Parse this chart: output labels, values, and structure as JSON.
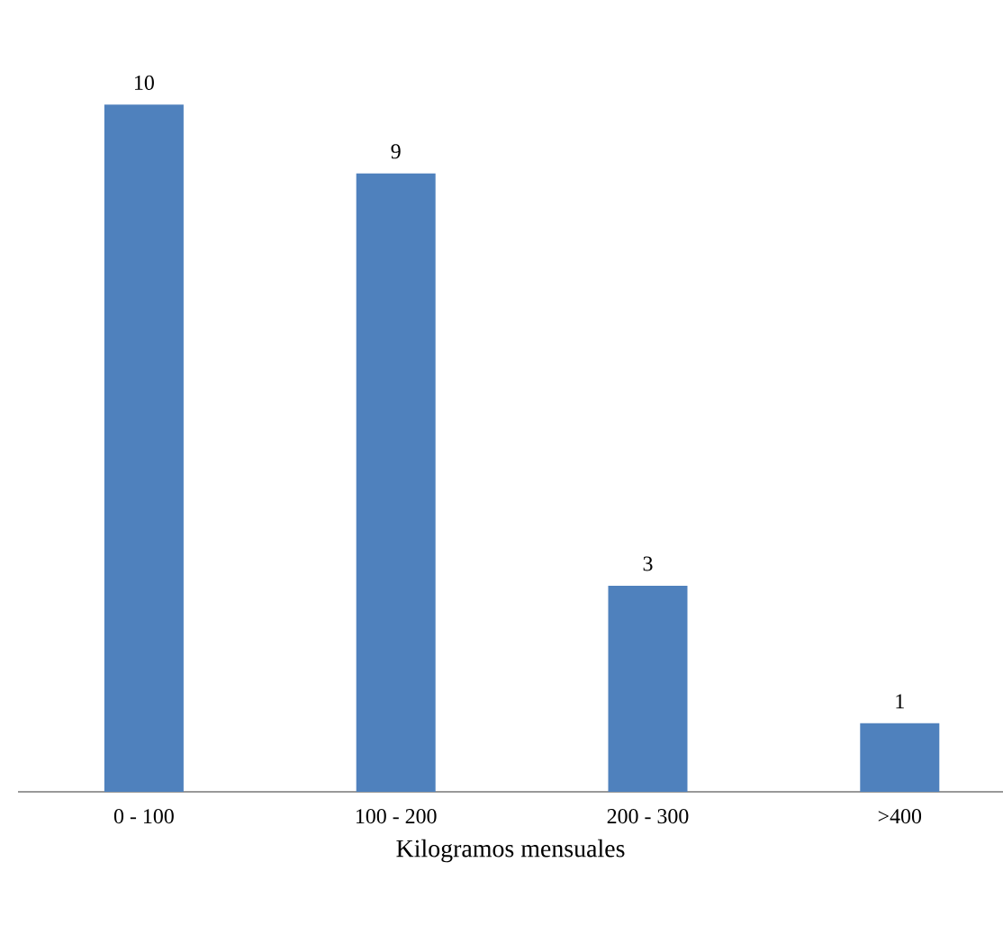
{
  "chart_data": {
    "type": "bar",
    "xlabel": "Kilogramos mensuales",
    "categories": [
      "0 - 100",
      "100 - 200",
      "200 - 300",
      ">400"
    ],
    "values": [
      10,
      9,
      3,
      1
    ],
    "color": "#4f81bd",
    "data_labels": true
  }
}
